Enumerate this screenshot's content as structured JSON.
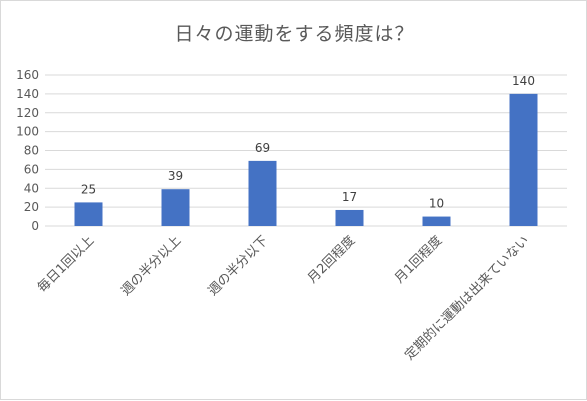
{
  "chart_data": {
    "type": "bar",
    "title": "日々の運動をする頻度は？",
    "categories": [
      "毎日1回以上",
      "週の半分以上",
      "週の半分以下",
      "月2回程度",
      "月1回程度",
      "定期的に運動は出来ていない"
    ],
    "values": [
      25,
      39,
      69,
      17,
      10,
      140
    ],
    "ylim": [
      0,
      160
    ],
    "yticks": [
      0,
      20,
      40,
      60,
      80,
      100,
      120,
      140,
      160
    ],
    "grid": true,
    "legend": "none",
    "bar_color": "#4472c4",
    "grid_color": "#d9d9d9",
    "text_color": "#595959"
  }
}
